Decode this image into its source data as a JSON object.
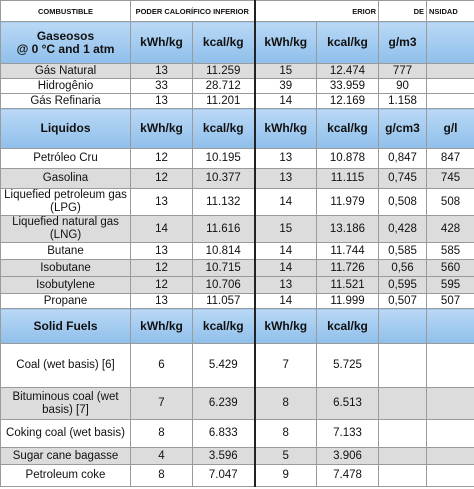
{
  "header": {
    "combustible": "COMBUSTIBLE",
    "pci": "PODER CALORÍFICO INFERIOR",
    "pcs": "ERIOR",
    "de": "DE",
    "dens": "NSIDAD"
  },
  "sections": [
    {
      "title": "Gaseosos\n@ 0 °C and 1 atm",
      "units": [
        "kWh/kg",
        "kcal/kg",
        "kWh/kg",
        "kcal/kg",
        "g/m3"
      ],
      "rows": [
        [
          "Gás Natural",
          "13",
          "11.259",
          "15",
          "12.474",
          "777"
        ],
        [
          "Hidrogênio",
          "33",
          "28.712",
          "39",
          "33.959",
          "90"
        ],
        [
          "Gás Refinaria",
          "13",
          "11.201",
          "14",
          "12.169",
          "1.158"
        ]
      ]
    },
    {
      "title": "Liquidos",
      "units": [
        "kWh/kg",
        "kcal/kg",
        "kWh/kg",
        "kcal/kg",
        "g/cm3",
        "g/l"
      ],
      "rows": [
        [
          "Petróleo Cru",
          "12",
          "10.195",
          "13",
          "10.878",
          "0,847",
          "847"
        ],
        [
          "Gasolina",
          "12",
          "10.377",
          "13",
          "11.115",
          "0,745",
          "745"
        ],
        [
          "Liquefied petroleum gas (LPG)",
          "13",
          "11.132",
          "14",
          "11.979",
          "0,508",
          "508"
        ],
        [
          "Liquefied natural gas (LNG)",
          "14",
          "11.616",
          "15",
          "13.186",
          "0,428",
          "428"
        ],
        [
          "Butane",
          "13",
          "10.814",
          "14",
          "11.744",
          "0,585",
          "585"
        ],
        [
          "Isobutane",
          "12",
          "10.715",
          "14",
          "11.726",
          "0,56",
          "560"
        ],
        [
          "Isobutylene",
          "12",
          "10.706",
          "13",
          "11.521",
          "0,595",
          "595"
        ],
        [
          "Propane",
          "13",
          "11.057",
          "14",
          "11.999",
          "0,507",
          "507"
        ]
      ]
    },
    {
      "title": "Solid Fuels",
      "units": [
        "kWh/kg",
        "kcal/kg",
        "kWh/kg",
        "kcal/kg"
      ],
      "rows": [
        [
          "Coal (wet basis) [6]",
          "6",
          "5.429",
          "7",
          "5.725"
        ],
        [
          "Bituminous coal (wet basis) [7]",
          "7",
          "6.239",
          "8",
          "6.513"
        ],
        [
          "Coking coal (wet basis)",
          "8",
          "6.833",
          "8",
          "7.133"
        ],
        [
          "Sugar cane bagasse",
          "4",
          "3.596",
          "5",
          "3.906"
        ],
        [
          "Petroleum coke",
          "8",
          "7.047",
          "9",
          "7.478"
        ]
      ]
    }
  ]
}
